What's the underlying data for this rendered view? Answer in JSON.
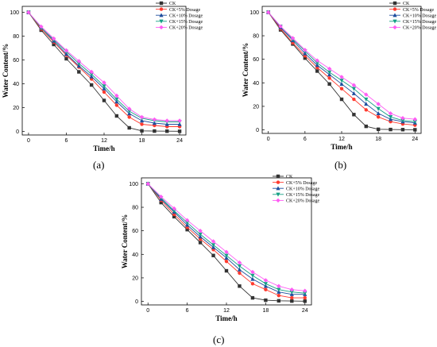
{
  "chart_data": [
    {
      "type": "line",
      "panel_label": "(a)",
      "xlabel": "Time/h",
      "ylabel": "Water Content/%",
      "x": [
        0,
        2,
        4,
        6,
        8,
        10,
        12,
        14,
        16,
        18,
        20,
        22,
        24
      ],
      "xticks": [
        0,
        6,
        12,
        18,
        24
      ],
      "yticks": [
        0,
        20,
        40,
        60,
        80,
        100
      ],
      "xlim": [
        -1,
        25
      ],
      "ylim": [
        -3,
        105
      ],
      "legend_position": "top-right",
      "series": [
        {
          "name": "CK",
          "color": "#333333",
          "marker": "square",
          "values": [
            100,
            85,
            73,
            61,
            50,
            39,
            26,
            13,
            3,
            0.5,
            0.3,
            0.2,
            0.1
          ]
        },
        {
          "name": "CK+5% Dosage",
          "color": "#ff3b30",
          "marker": "circle",
          "values": [
            100,
            86,
            75,
            64,
            54,
            44,
            33,
            22,
            12,
            6,
            5,
            4,
            4
          ]
        },
        {
          "name": "CK+10% Dosage",
          "color": "#1f4e9e",
          "marker": "triangle-up",
          "values": [
            100,
            87,
            76,
            65,
            55,
            46,
            36,
            25,
            15,
            9,
            7,
            6,
            6
          ]
        },
        {
          "name": "CK+15% Dosage",
          "color": "#16a085",
          "marker": "triangle-down",
          "values": [
            100,
            87,
            77,
            67,
            57,
            48,
            38,
            27,
            17,
            11,
            9,
            8,
            8
          ]
        },
        {
          "name": "CK+20% Dosage",
          "color": "#ff5cf4",
          "marker": "diamond",
          "values": [
            100,
            88,
            78,
            68,
            59,
            50,
            41,
            30,
            19,
            12,
            10,
            9,
            9
          ]
        }
      ]
    },
    {
      "type": "line",
      "panel_label": "(b)",
      "xlabel": "Time/h",
      "ylabel": "Water Content/%",
      "x": [
        0,
        2,
        4,
        6,
        8,
        10,
        12,
        14,
        16,
        18,
        20,
        22,
        24
      ],
      "xticks": [
        0,
        6,
        12,
        18,
        24
      ],
      "yticks": [
        0,
        20,
        40,
        60,
        80,
        100
      ],
      "xlim": [
        -1,
        25
      ],
      "ylim": [
        -3,
        105
      ],
      "legend_position": "top-right",
      "series": [
        {
          "name": "CK",
          "color": "#333333",
          "marker": "square",
          "values": [
            100,
            85,
            73,
            61,
            50,
            39,
            26,
            13,
            3,
            0.5,
            0.3,
            0.2,
            0.1
          ]
        },
        {
          "name": "CK+5% Dosage",
          "color": "#ff3b30",
          "marker": "circle",
          "values": [
            100,
            86,
            74,
            63,
            53,
            44,
            35,
            26,
            17,
            11,
            7,
            5,
            4
          ]
        },
        {
          "name": "CK+10% Dosage",
          "color": "#1f4e9e",
          "marker": "triangle-up",
          "values": [
            100,
            87,
            76,
            65,
            55,
            47,
            39,
            31,
            22,
            14,
            9,
            7,
            6
          ]
        },
        {
          "name": "CK+15% Dosage",
          "color": "#16a085",
          "marker": "triangle-down",
          "values": [
            100,
            88,
            77,
            67,
            57,
            49,
            42,
            35,
            26,
            18,
            11,
            8,
            7
          ]
        },
        {
          "name": "CK+20% Dosage",
          "color": "#ff5cf4",
          "marker": "diamond",
          "values": [
            100,
            88,
            78,
            68,
            59,
            52,
            45,
            38,
            30,
            22,
            14,
            10,
            9
          ]
        }
      ]
    },
    {
      "type": "line",
      "panel_label": "(c)",
      "xlabel": "Time/h",
      "ylabel": "Water Content/%",
      "x": [
        0,
        2,
        4,
        6,
        8,
        10,
        12,
        14,
        16,
        18,
        20,
        22,
        24
      ],
      "xticks": [
        0,
        6,
        12,
        18,
        24
      ],
      "yticks": [
        0,
        20,
        40,
        60,
        80,
        100
      ],
      "xlim": [
        -1,
        25
      ],
      "ylim": [
        -3,
        105
      ],
      "legend_position": "top-right",
      "series": [
        {
          "name": "CK",
          "color": "#333333",
          "marker": "square",
          "values": [
            100,
            84,
            72,
            61,
            50,
            39,
            26,
            13,
            3,
            1,
            0.5,
            0.3,
            0.2
          ]
        },
        {
          "name": "CK+5% Dosage",
          "color": "#ff3b30",
          "marker": "circle",
          "values": [
            100,
            86,
            74,
            63,
            53,
            44,
            34,
            24,
            15,
            10,
            5,
            3,
            3
          ]
        },
        {
          "name": "CK+10% Dosage",
          "color": "#1f4e9e",
          "marker": "triangle-up",
          "values": [
            100,
            87,
            76,
            65,
            55,
            46,
            37,
            27,
            19,
            13,
            8,
            6,
            6
          ]
        },
        {
          "name": "CK+15% Dosage",
          "color": "#16a085",
          "marker": "triangle-down",
          "values": [
            100,
            88,
            77,
            67,
            57,
            48,
            39,
            30,
            22,
            15,
            10,
            8,
            7
          ]
        },
        {
          "name": "CK+20% Dosage",
          "color": "#ff5cf4",
          "marker": "diamond",
          "values": [
            100,
            89,
            79,
            69,
            60,
            51,
            42,
            33,
            25,
            18,
            13,
            10,
            9
          ]
        }
      ]
    }
  ]
}
